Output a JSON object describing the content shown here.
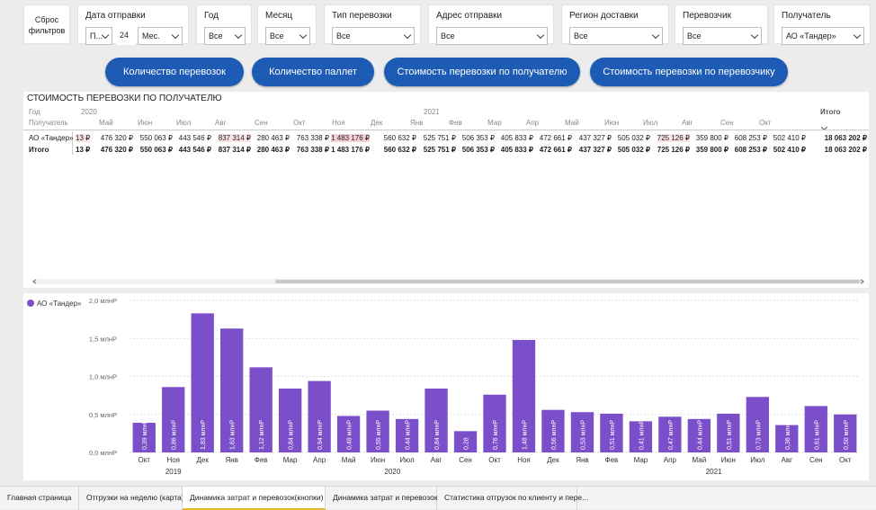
{
  "filters": {
    "reset_label": "Сброс фильтров",
    "date": {
      "label": "Дата отправки",
      "mode": "П...",
      "count": "24",
      "unit": "Мес."
    },
    "year": {
      "label": "Год",
      "value": "Все"
    },
    "month": {
      "label": "Месяц",
      "value": "Все"
    },
    "transport_type": {
      "label": "Тип перевозки",
      "value": "Все"
    },
    "ship_address": {
      "label": "Адрес отправки",
      "value": "Все"
    },
    "region": {
      "label": "Регион доставки",
      "value": "Все"
    },
    "carrier": {
      "label": "Перевозчик",
      "value": "Все"
    },
    "recipient": {
      "label": "Получатель",
      "value": "АО «Тандер»"
    }
  },
  "buttons": [
    "Количество перевозок",
    "Количество паллет",
    "Стоимость перевозки по получателю",
    "Стоимость перевозки по перевозчику"
  ],
  "table": {
    "title": "СТОИМОСТЬ ПЕРЕВОЗКИ ПО ПОЛУЧАТЕЛЮ",
    "year_header": "Год",
    "recipient_header": "Получатель",
    "total_header": "Итого",
    "year_2020": "2020",
    "year_2021": "2021",
    "months": [
      "Май",
      "Июн",
      "Июл",
      "Авг",
      "Сен",
      "Окт",
      "Ноя",
      "Дек",
      "Янв",
      "Фев",
      "Мар",
      "Апр",
      "Май",
      "Июн",
      "Июл",
      "Авг",
      "Сен",
      "Окт"
    ],
    "rows": [
      {
        "name": "АО «Тандер»",
        "first": "13 ₽",
        "values": [
          "476 320 ₽",
          "550 063 ₽",
          "443 546 ₽",
          "837 314 ₽",
          "280 463 ₽",
          "763 338 ₽",
          "1 483 176 ₽",
          "560 632 ₽",
          "525 751 ₽",
          "506 353 ₽",
          "405 833 ₽",
          "472 661 ₽",
          "437 327 ₽",
          "505 032 ₽",
          "725 126 ₽",
          "359 800 ₽",
          "608 253 ₽",
          "502 410 ₽"
        ],
        "total": "18 063 202 ₽"
      },
      {
        "name": "Итого",
        "first": "13 ₽",
        "values": [
          "476 320 ₽",
          "550 063 ₽",
          "443 546 ₽",
          "837 314 ₽",
          "280 463 ₽",
          "763 338 ₽",
          "1 483 176 ₽",
          "560 632 ₽",
          "525 751 ₽",
          "506 353 ₽",
          "405 833 ₽",
          "472 661 ₽",
          "437 327 ₽",
          "505 032 ₽",
          "725 126 ₽",
          "359 800 ₽",
          "608 253 ₽",
          "502 410 ₽"
        ],
        "total": "18 063 202 ₽"
      }
    ]
  },
  "chart_data": {
    "type": "bar",
    "legend": "АО «Тандер»",
    "legend_position": "top-left",
    "color": "#7b4fc9",
    "categories": [
      "Окт",
      "Ноя",
      "Дек",
      "Янв",
      "Фев",
      "Мар",
      "Апр",
      "Май",
      "Июн",
      "Июл",
      "Авг",
      "Сен",
      "Окт",
      "Ноя",
      "Дек",
      "Янв",
      "Фев",
      "Мар",
      "Апр",
      "Май",
      "Июн",
      "Июл",
      "Авг",
      "Сен",
      "Окт"
    ],
    "year_labels": [
      {
        "label": "2019",
        "start": 0,
        "end": 2
      },
      {
        "label": "2020",
        "start": 3,
        "end": 14
      },
      {
        "label": "2021",
        "start": 15,
        "end": 24
      }
    ],
    "values": [
      0.39,
      0.86,
      1.83,
      1.63,
      1.12,
      0.84,
      0.94,
      0.48,
      0.55,
      0.44,
      0.84,
      0.28,
      0.76,
      1.48,
      0.56,
      0.53,
      0.51,
      0.41,
      0.47,
      0.44,
      0.51,
      0.73,
      0.36,
      0.61,
      0.5
    ],
    "data_labels": [
      "0,39 млнР",
      "0,86 млнР",
      "1,83 млнР",
      "1,63 млнР",
      "1,12 млнР",
      "0,84 млнР",
      "0,94 млнР",
      "0,48 млнР",
      "0,55 млнР",
      "0,44 млнР",
      "0,84 млнР",
      "0,28",
      "0,76 млнР",
      "1,48 млнР",
      "0,56 млнР",
      "0,53 млнР",
      "0,51 млнР",
      "0,41 млнР",
      "0,47 млнР",
      "0,44 млнР",
      "0,51 млнР",
      "0,73 млнР",
      "0,36 млнР",
      "0,61 млнР",
      "0,50 млнР"
    ],
    "yticks": [
      0,
      0.5,
      1.0,
      1.5,
      2.0
    ],
    "ytick_labels": [
      "0,0 млнР",
      "0,5 млнР",
      "1,0 млнР",
      "1,5 млнР",
      "2,0 млнР"
    ],
    "ylim": [
      0,
      2.0
    ],
    "grid": true
  },
  "tabs": [
    {
      "label": "Главная страница",
      "active": false
    },
    {
      "label": "Отгрузки на неделю (карта)",
      "active": false
    },
    {
      "label": "Динамика затрат и перевозок(кнопки)",
      "active": true
    },
    {
      "label": "Динамика затрат и перевозок",
      "active": false
    },
    {
      "label": "Статистика отгрузок по клиенту и пере...",
      "active": false
    }
  ]
}
